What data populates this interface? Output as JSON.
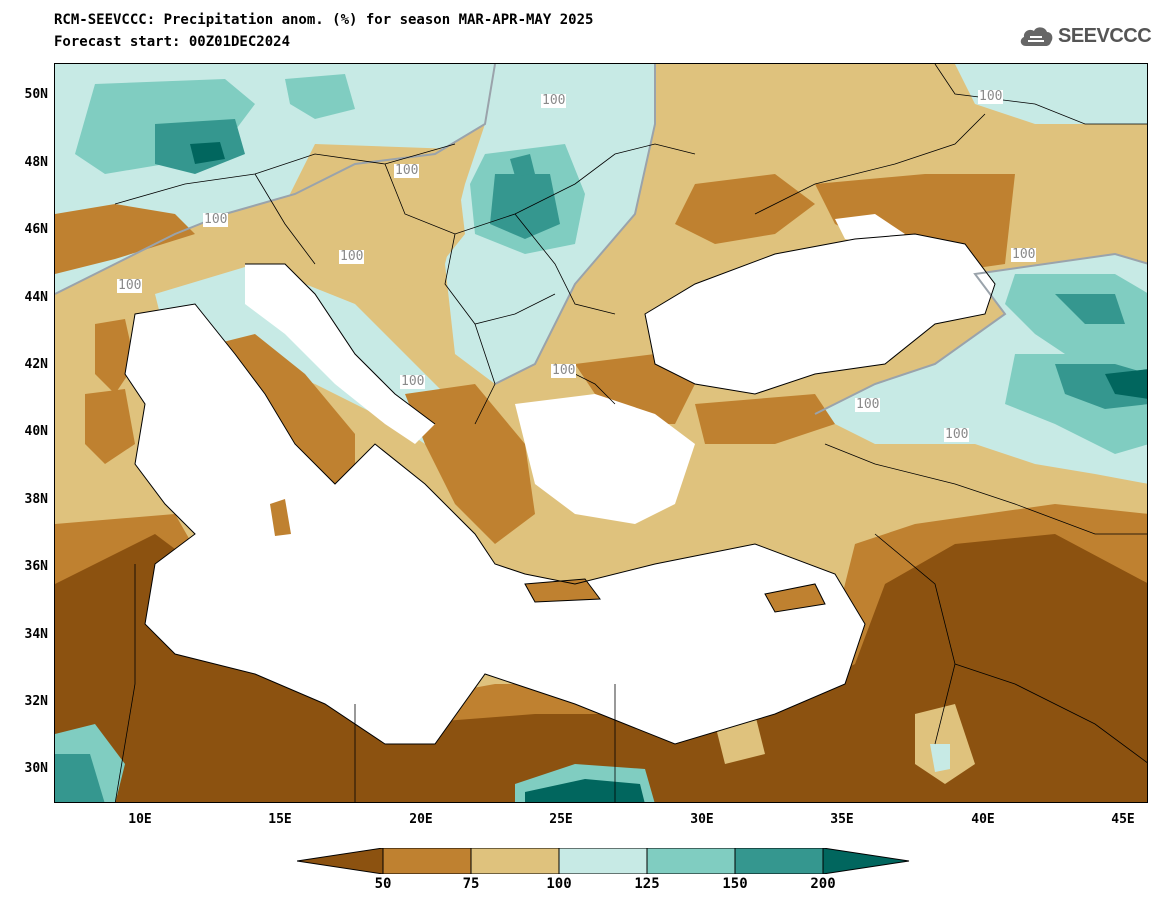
{
  "header": {
    "title_line1": "RCM-SEEVCCC: Precipitation anom. (%) for season MAR-APR-MAY 2025",
    "title_line2": "Forecast start: 00Z01DEC2024",
    "logo_text": "SEEVCCC"
  },
  "axes": {
    "lat_labels": [
      "50N",
      "48N",
      "46N",
      "44N",
      "42N",
      "40N",
      "38N",
      "36N",
      "34N",
      "32N",
      "30N"
    ],
    "lon_labels": [
      "10E",
      "15E",
      "20E",
      "25E",
      "30E",
      "35E",
      "40E",
      "45E"
    ]
  },
  "contour_labels": [
    "100",
    "100",
    "100",
    "100",
    "100",
    "100",
    "100",
    "100",
    "100",
    "100",
    "100"
  ],
  "legend": {
    "ticks": [
      "50",
      "75",
      "100",
      "125",
      "150",
      "200"
    ],
    "colors": [
      "#8c5210",
      "#bf8130",
      "#dfc27d",
      "#c7eae5",
      "#80cdc1",
      "#35978f",
      "#01665e"
    ]
  }
}
